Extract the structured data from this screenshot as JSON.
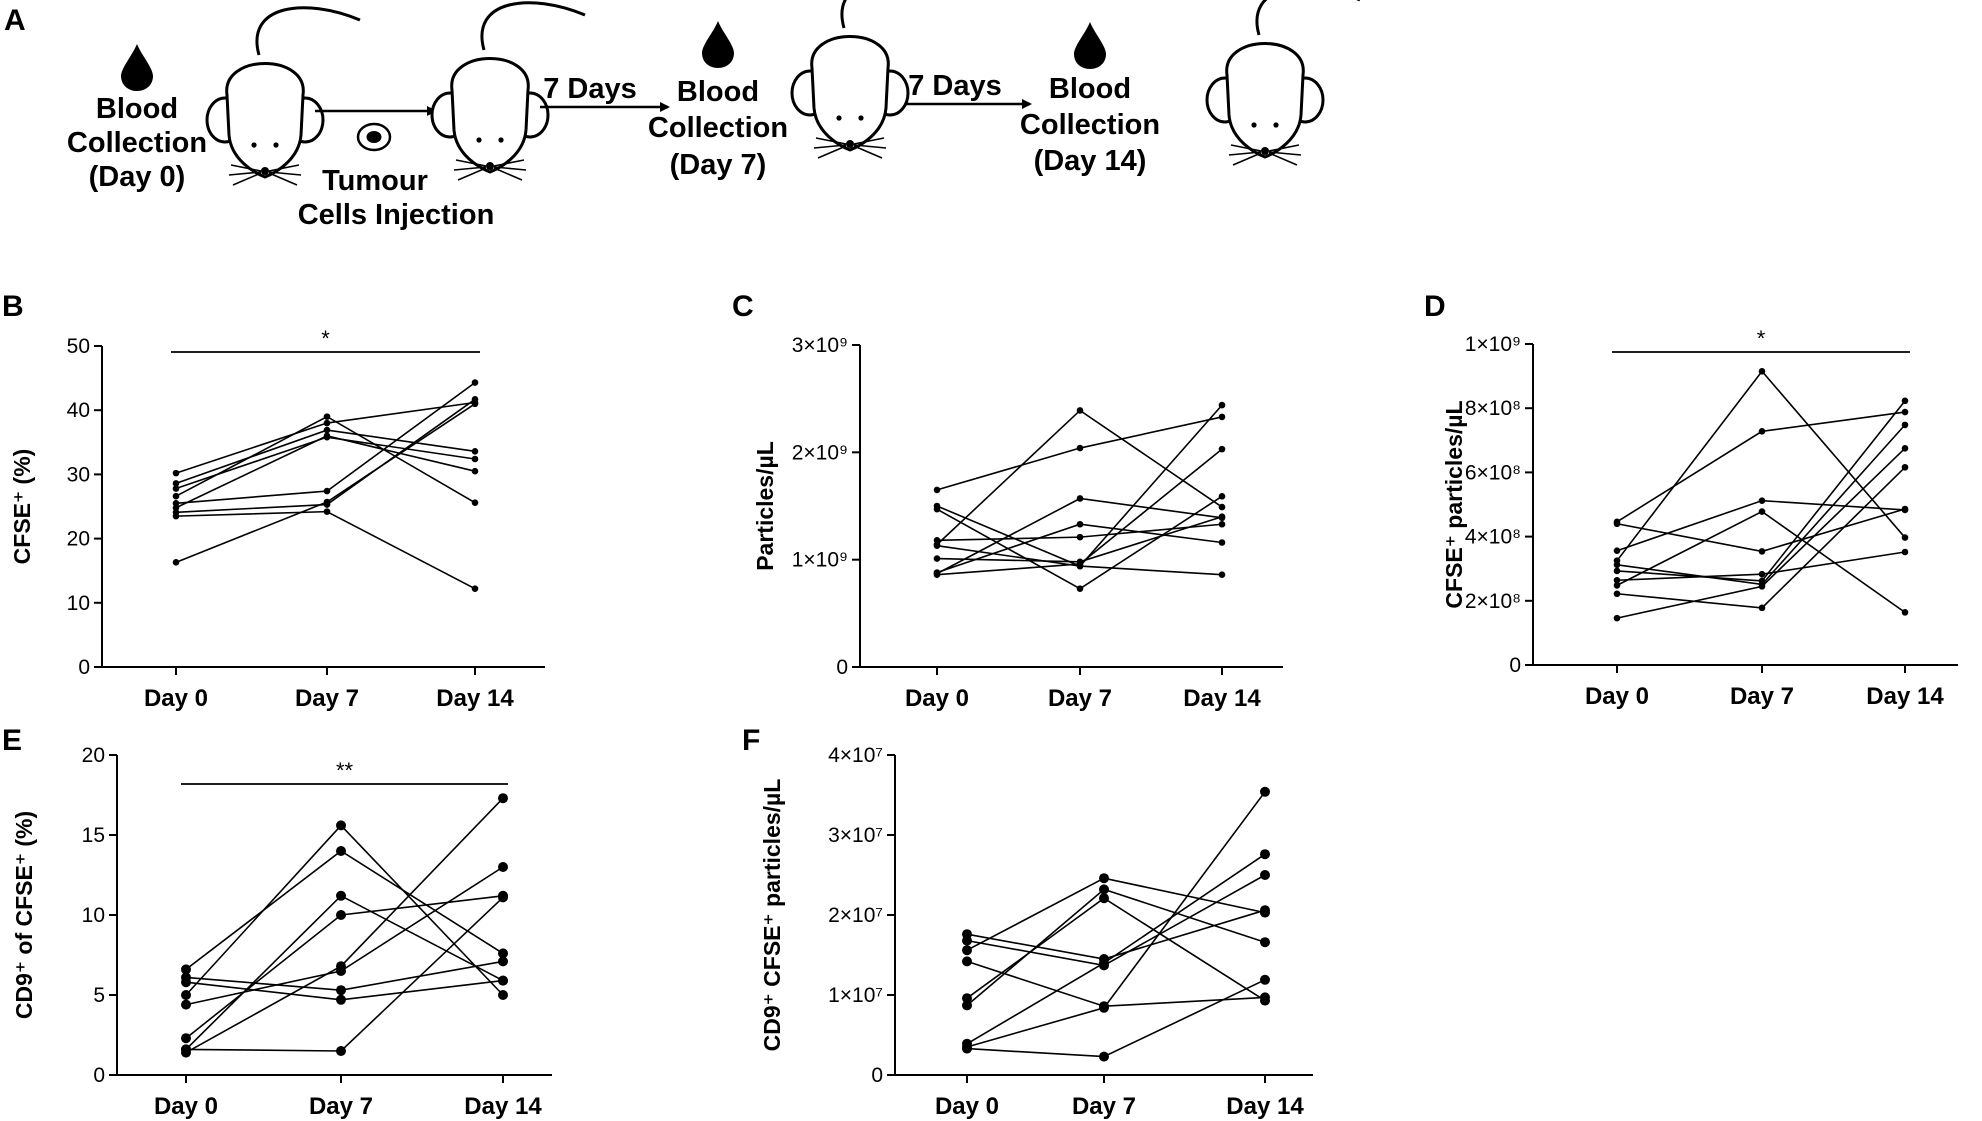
{
  "schematic": {
    "letter": "A",
    "stages": [
      {
        "lines": [
          "Blood",
          "Collection",
          "(Day 0)"
        ]
      },
      {
        "lines": [
          "Tumour",
          "Cells Injection"
        ]
      },
      {
        "lines": [
          "Blood",
          "Collection",
          "(Day 7)"
        ]
      },
      {
        "lines": [
          "Blood",
          "Collection",
          "(Day 14)"
        ]
      }
    ],
    "arrows": [
      {
        "label": ""
      },
      {
        "label": "7 Days"
      },
      {
        "label": "7 Days"
      }
    ],
    "icons": [
      "blood-drop-icon",
      "mouse-icon",
      "tumour-cell-icon",
      "arrow-icon"
    ]
  },
  "chart_data": [
    {
      "panel": "B",
      "type": "line",
      "ylabel": "CFSE⁺ (%)",
      "categories": [
        "Day 0",
        "Day 7",
        "Day 14"
      ],
      "ylim": [
        0,
        50
      ],
      "yticks": [
        0,
        10,
        20,
        30,
        40,
        50
      ],
      "ytick_labels": [
        "0",
        "10",
        "20",
        "30",
        "40",
        "50"
      ],
      "significance": {
        "label": "*",
        "from": "Day 0",
        "to": "Day 14"
      },
      "marker": "small",
      "series": [
        {
          "values": [
            30.2,
            38.0,
            41.2
          ]
        },
        {
          "values": [
            28.6,
            36.9,
            33.6
          ]
        },
        {
          "values": [
            27.8,
            35.8,
            32.4
          ]
        },
        {
          "values": [
            26.6,
            39.0,
            25.6
          ]
        },
        {
          "values": [
            25.5,
            27.4,
            44.3
          ]
        },
        {
          "values": [
            24.8,
            36.0,
            30.5
          ]
        },
        {
          "values": [
            24.1,
            25.3,
            41.7
          ]
        },
        {
          "values": [
            23.5,
            24.2,
            12.2
          ]
        },
        {
          "values": [
            16.3,
            25.7,
            41.0
          ]
        }
      ]
    },
    {
      "panel": "C",
      "type": "line",
      "ylabel": "Particles/µL",
      "categories": [
        "Day 0",
        "Day 7",
        "Day 14"
      ],
      "ylim": [
        0,
        3000000000
      ],
      "yticks": [
        0,
        1000000000,
        2000000000,
        3000000000
      ],
      "ytick_labels": [
        "0",
        "1×10⁹",
        "2×10⁹",
        "3×10⁹"
      ],
      "marker": "small",
      "series": [
        {
          "values": [
            1650000000,
            2040000000,
            2330000000
          ]
        },
        {
          "values": [
            1500000000,
            940000000,
            2440000000
          ]
        },
        {
          "values": [
            1470000000,
            730000000,
            1590000000
          ]
        },
        {
          "values": [
            1180000000,
            1210000000,
            1330000000
          ]
        },
        {
          "values": [
            1140000000,
            2390000000,
            1490000000
          ]
        },
        {
          "values": [
            1010000000,
            980000000,
            1400000000
          ]
        },
        {
          "values": [
            870000000,
            1570000000,
            1390000000
          ]
        },
        {
          "values": [
            880000000,
            1330000000,
            1160000000
          ]
        },
        {
          "values": [
            860000000,
            960000000,
            2030000000
          ]
        },
        {
          "values": [
            1130000000,
            940000000,
            860000000
          ]
        }
      ]
    },
    {
      "panel": "D",
      "type": "line",
      "ylabel": "CFSE⁺ particles/µL",
      "categories": [
        "Day 0",
        "Day 7",
        "Day 14"
      ],
      "ylim": [
        0,
        1000000000
      ],
      "yticks": [
        0,
        200000000,
        400000000,
        600000000,
        800000000,
        1000000000
      ],
      "ytick_labels": [
        "0",
        "2×10⁸",
        "4×10⁸",
        "6×10⁸",
        "8×10⁸",
        "1×10⁹"
      ],
      "significance": {
        "label": "*",
        "from": "Day 0",
        "to": "Day 14"
      },
      "marker": "small",
      "series": [
        {
          "values": [
            446000000,
            728000000,
            788000000
          ]
        },
        {
          "values": [
            440000000,
            354000000,
            486000000
          ]
        },
        {
          "values": [
            356000000,
            512000000,
            483000000
          ]
        },
        {
          "values": [
            325000000,
            915000000,
            397000000
          ]
        },
        {
          "values": [
            312000000,
            251000000,
            748000000
          ]
        },
        {
          "values": [
            293000000,
            262000000,
            823000000
          ]
        },
        {
          "values": [
            264000000,
            283000000,
            352000000
          ]
        },
        {
          "values": [
            248000000,
            478000000,
            164000000
          ]
        },
        {
          "values": [
            222000000,
            178000000,
            616000000
          ]
        },
        {
          "values": [
            146000000,
            245000000,
            675000000
          ]
        }
      ]
    },
    {
      "panel": "E",
      "type": "line",
      "ylabel": "CD9⁺ of CFSE⁺ (%)",
      "categories": [
        "Day 0",
        "Day 7",
        "Day 14"
      ],
      "ylim": [
        0,
        20
      ],
      "yticks": [
        0,
        5,
        10,
        15,
        20
      ],
      "ytick_labels": [
        "0",
        "5",
        "10",
        "15",
        "20"
      ],
      "significance": {
        "label": "**",
        "from": "Day 0",
        "to": "Day 14"
      },
      "marker": "large",
      "series": [
        {
          "values": [
            6.6,
            14.0,
            7.6
          ]
        },
        {
          "values": [
            6.1,
            5.3,
            7.1
          ]
        },
        {
          "values": [
            5.8,
            4.7,
            5.9
          ]
        },
        {
          "values": [
            5.0,
            15.6,
            5.0
          ]
        },
        {
          "values": [
            4.4,
            6.5,
            13.0
          ]
        },
        {
          "values": [
            2.3,
            10.0,
            11.2
          ]
        },
        {
          "values": [
            1.6,
            11.2,
            5.9
          ]
        },
        {
          "values": [
            1.4,
            6.8,
            17.3
          ]
        },
        {
          "values": [
            1.6,
            1.5,
            11.1
          ]
        }
      ]
    },
    {
      "panel": "F",
      "type": "line",
      "ylabel": "CD9⁺ CFSE⁺ particles/µL",
      "categories": [
        "Day 0",
        "Day 7",
        "Day 14"
      ],
      "ylim": [
        0,
        40000000
      ],
      "yticks": [
        0,
        10000000,
        20000000,
        30000000,
        40000000
      ],
      "ytick_labels": [
        "0",
        "1×10⁷",
        "2×10⁷",
        "3×10⁷",
        "4×10⁷"
      ],
      "marker": "large",
      "series": [
        {
          "values": [
            17600000,
            14500000,
            20600000
          ]
        },
        {
          "values": [
            16800000,
            13700000,
            25000000
          ]
        },
        {
          "values": [
            15600000,
            24600000,
            20300000
          ]
        },
        {
          "values": [
            14200000,
            8600000,
            9700000
          ]
        },
        {
          "values": [
            9600000,
            22100000,
            9300000
          ]
        },
        {
          "values": [
            8700000,
            23200000,
            16600000
          ]
        },
        {
          "values": [
            3900000,
            14000000,
            27600000
          ]
        },
        {
          "values": [
            3500000,
            8400000,
            35400000
          ]
        },
        {
          "values": [
            3300000,
            2300000,
            11900000
          ]
        }
      ]
    }
  ]
}
